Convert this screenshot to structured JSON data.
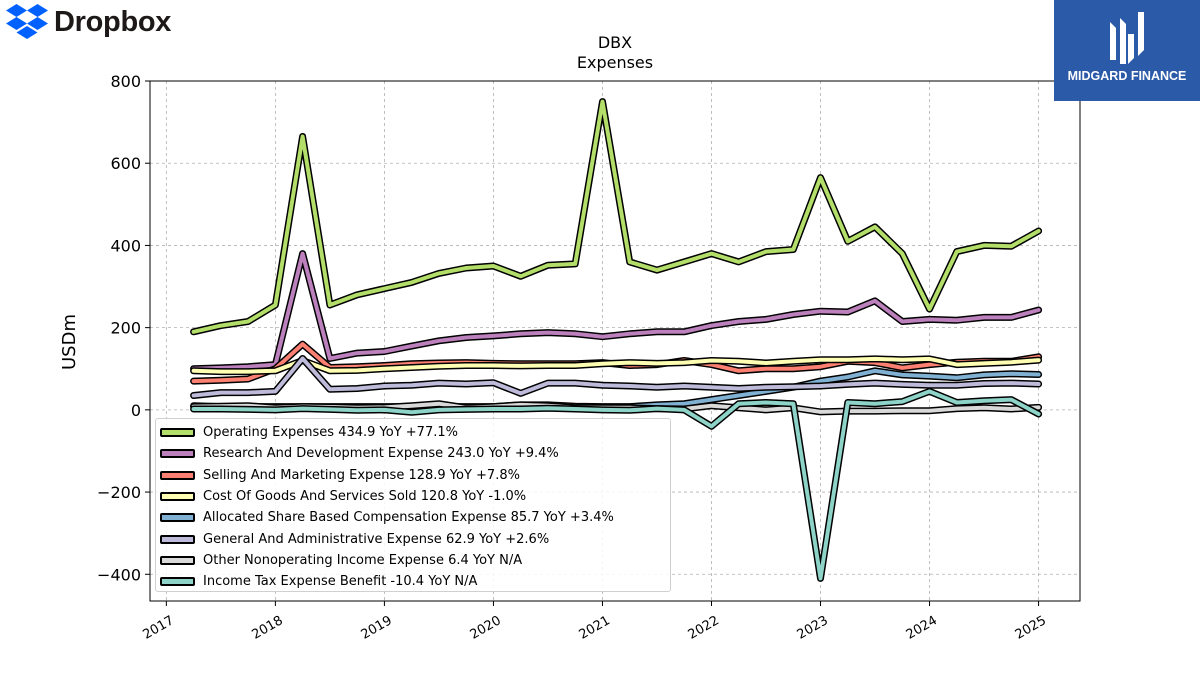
{
  "branding": {
    "left_logo_text": "Dropbox",
    "left_logo_color": "#0061fe",
    "right_logo_text": "MIDGARD FINANCE",
    "right_logo_bg": "#2b5aa8"
  },
  "chart_data": {
    "type": "line",
    "title": "DBX",
    "subtitle": "Expenses",
    "ylabel": "USDm",
    "xlabel": "",
    "ylim": [
      -465,
      800
    ],
    "xlim": [
      2016.85,
      2025.38
    ],
    "yticks": [
      -400,
      -200,
      0,
      200,
      400,
      600,
      800
    ],
    "ytick_labels": [
      "−400",
      "−200",
      "0",
      "200",
      "400",
      "600",
      "800"
    ],
    "xticks": [
      2017,
      2018,
      2019,
      2020,
      2021,
      2022,
      2023,
      2024,
      2025
    ],
    "xtick_labels": [
      "2017",
      "2018",
      "2019",
      "2020",
      "2021",
      "2022",
      "2023",
      "2024",
      "2025"
    ],
    "grid": true,
    "legend_position": "lower-left",
    "x": [
      2017.25,
      2017.5,
      2017.75,
      2018.0,
      2018.25,
      2018.5,
      2018.75,
      2019.0,
      2019.25,
      2019.5,
      2019.75,
      2020.0,
      2020.25,
      2020.5,
      2020.75,
      2021.0,
      2021.25,
      2021.5,
      2021.75,
      2022.0,
      2022.25,
      2022.5,
      2022.75,
      2023.0,
      2023.25,
      2023.5,
      2023.75,
      2024.0,
      2024.25,
      2024.5,
      2024.75,
      2025.0
    ],
    "series": [
      {
        "name": "Operating Expenses  434.9 YoY +77.1%",
        "color": "#b3de69",
        "values": [
          190,
          205,
          215,
          255,
          665,
          255,
          280,
          295,
          310,
          332,
          345,
          350,
          325,
          352,
          355,
          750,
          360,
          340,
          360,
          380,
          360,
          385,
          390,
          565,
          410,
          445,
          380,
          245,
          385,
          400,
          398,
          435
        ]
      },
      {
        "name": "Research And Development Expense  243.0 YoY +9.4%",
        "color": "#bc80bd",
        "values": [
          100,
          102,
          105,
          110,
          380,
          125,
          138,
          142,
          155,
          168,
          176,
          180,
          185,
          188,
          185,
          178,
          185,
          190,
          190,
          205,
          215,
          220,
          232,
          240,
          238,
          265,
          215,
          220,
          218,
          225,
          225,
          243
        ]
      },
      {
        "name": "Selling And Marketing Expense  128.9 YoY +7.8%",
        "color": "#fb8072",
        "values": [
          70,
          72,
          75,
          100,
          160,
          103,
          105,
          108,
          112,
          114,
          115,
          113,
          112,
          112,
          112,
          115,
          108,
          110,
          120,
          110,
          95,
          100,
          100,
          105,
          118,
          115,
          102,
          110,
          116,
          118,
          118,
          129
        ]
      },
      {
        "name": "Cost Of Goods And Services Sold  120.8 YoY -1.0%",
        "color": "#ffffb3",
        "values": [
          95,
          93,
          93,
          95,
          120,
          95,
          96,
          100,
          103,
          106,
          108,
          108,
          107,
          108,
          108,
          112,
          115,
          113,
          115,
          120,
          118,
          114,
          118,
          122,
          122,
          124,
          122,
          124,
          110,
          113,
          116,
          121
        ]
      },
      {
        "name": "Allocated Share Based Compensation Expense  85.7 YoY +3.4%",
        "color": "#80b1d3",
        "values": [
          10,
          8,
          8,
          8,
          8,
          8,
          8,
          8,
          8,
          8,
          8,
          8,
          12,
          12,
          9,
          8,
          8,
          12,
          15,
          25,
          35,
          45,
          55,
          70,
          80,
          95,
          85,
          82,
          78,
          85,
          88,
          86
        ]
      },
      {
        "name": "General And Administrative Expense  62.9 YoY +2.6%",
        "color": "#bebada",
        "values": [
          35,
          42,
          42,
          45,
          125,
          50,
          52,
          58,
          60,
          65,
          63,
          66,
          40,
          65,
          65,
          60,
          58,
          55,
          58,
          55,
          52,
          55,
          56,
          58,
          62,
          65,
          62,
          60,
          60,
          64,
          65,
          63
        ]
      },
      {
        "name": "Other Nonoperating Income Expense  6.4 YoY N/A",
        "color": "#d9d9d9",
        "values": [
          8,
          9,
          10,
          5,
          8,
          7,
          5,
          6,
          10,
          15,
          5,
          8,
          12,
          10,
          5,
          5,
          5,
          3,
          2,
          10,
          5,
          0,
          5,
          -5,
          -3,
          -3,
          -2,
          -2,
          3,
          5,
          2,
          6
        ]
      },
      {
        "name": "Income Tax Expense Benefit  -10.4 YoY N/A",
        "color": "#8dd3c7",
        "values": [
          2,
          2,
          1,
          0,
          3,
          1,
          -1,
          0,
          -6,
          0,
          1,
          2,
          2,
          4,
          2,
          0,
          -1,
          3,
          0,
          -40,
          15,
          18,
          15,
          -410,
          18,
          15,
          20,
          45,
          18,
          22,
          25,
          -10
        ]
      }
    ]
  }
}
